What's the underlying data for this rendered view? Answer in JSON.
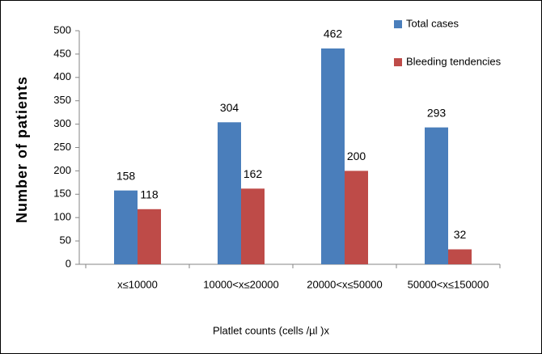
{
  "chart_data": {
    "type": "bar",
    "xlabel": "Platlet counts (cells /µl )x",
    "ylabel": "Number of patients",
    "categories": [
      "x≤10000",
      "10000<x≤20000",
      "20000<x≤50000",
      "50000<x≤150000"
    ],
    "series": [
      {
        "name": "Total cases",
        "color": "#4a7ebb",
        "values": [
          158,
          304,
          462,
          293
        ]
      },
      {
        "name": "Bleeding tendencies",
        "color": "#be4b48",
        "values": [
          118,
          162,
          200,
          32
        ]
      }
    ],
    "ylim": [
      0,
      500
    ],
    "yticks": [
      0,
      50,
      100,
      150,
      200,
      250,
      300,
      350,
      400,
      450,
      500
    ],
    "grid": false,
    "legend": "upper right"
  }
}
